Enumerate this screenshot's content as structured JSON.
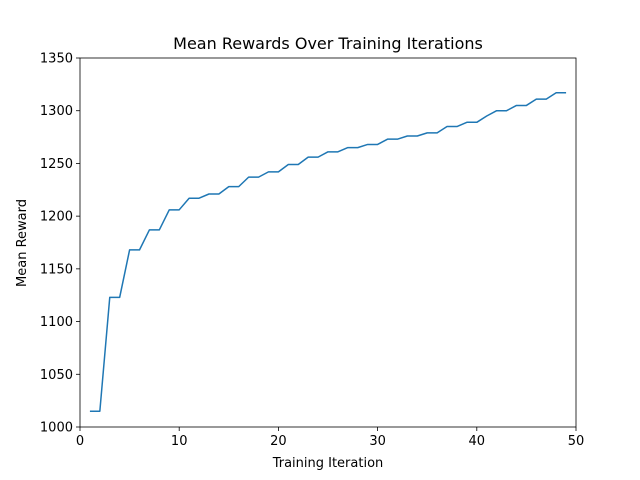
{
  "chart_data": {
    "type": "line",
    "title": "Mean Rewards Over Training Iterations",
    "xlabel": "Training Iteration",
    "ylabel": "Mean Reward",
    "xlim": [
      0,
      50
    ],
    "ylim": [
      1000,
      1350
    ],
    "xticks": [
      0,
      10,
      20,
      30,
      40,
      50
    ],
    "yticks": [
      1000,
      1050,
      1100,
      1150,
      1200,
      1250,
      1300,
      1350
    ],
    "grid": false,
    "series": [
      {
        "color": "#1f77b4",
        "x": [
          1,
          2,
          3,
          4,
          5,
          6,
          7,
          8,
          9,
          10,
          11,
          12,
          13,
          14,
          15,
          16,
          17,
          18,
          19,
          20,
          21,
          22,
          23,
          24,
          25,
          26,
          27,
          28,
          29,
          30,
          31,
          32,
          33,
          34,
          35,
          36,
          37,
          38,
          39,
          40,
          41,
          42,
          43,
          44,
          45,
          46,
          47,
          48,
          49
        ],
        "y": [
          1015,
          1015,
          1123,
          1123,
          1168,
          1168,
          1187,
          1187,
          1206,
          1206,
          1217,
          1217,
          1221,
          1221,
          1228,
          1228,
          1237,
          1237,
          1242,
          1242,
          1249,
          1249,
          1256,
          1256,
          1261,
          1261,
          1265,
          1265,
          1268,
          1268,
          1273,
          1273,
          1276,
          1276,
          1279,
          1279,
          1285,
          1285,
          1289,
          1289,
          1295,
          1300,
          1300,
          1305,
          1305,
          1311,
          1311,
          1317,
          1317
        ]
      }
    ]
  }
}
